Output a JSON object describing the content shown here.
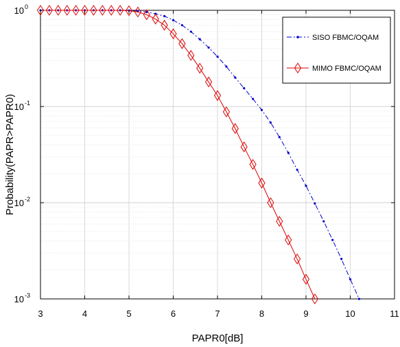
{
  "chart_data": {
    "type": "line",
    "xlabel": "PAPR0[dB]",
    "ylabel": "Probability(PAPR>PAPR0)",
    "x_scale": "linear",
    "y_scale": "log",
    "xlim": [
      3,
      11
    ],
    "ylim": [
      0.001,
      1
    ],
    "grid": true,
    "legend_position": "top-right",
    "x_ticks": [
      3,
      4,
      5,
      6,
      7,
      8,
      9,
      10,
      11
    ],
    "x_tick_labels": [
      "3",
      "4",
      "5",
      "6",
      "7",
      "8",
      "9",
      "10",
      "11"
    ],
    "y_ticks": [
      0.001,
      0.01,
      0.1,
      1
    ],
    "y_tick_labels": [
      {
        "base": "10",
        "exp": "-3"
      },
      {
        "base": "10",
        "exp": "-2"
      },
      {
        "base": "10",
        "exp": "-1"
      },
      {
        "base": "10",
        "exp": "0"
      }
    ],
    "series": [
      {
        "name": "SISO FBMC/OQAM",
        "color": "#0000cc",
        "line_style": "dash-dot",
        "marker": "point",
        "x": [
          3.0,
          3.2,
          3.4,
          3.6,
          3.8,
          4.0,
          4.2,
          4.4,
          4.6,
          4.8,
          5.0,
          5.2,
          5.4,
          5.6,
          5.8,
          6.0,
          6.2,
          6.4,
          6.6,
          6.8,
          7.0,
          7.2,
          7.4,
          7.6,
          7.8,
          8.0,
          8.2,
          8.4,
          8.6,
          8.8,
          9.0,
          9.2,
          9.4,
          9.6,
          9.8,
          10.0,
          10.2
        ],
        "y": [
          1.0,
          1.0,
          1.0,
          1.0,
          1.0,
          1.0,
          1.0,
          1.0,
          1.0,
          1.0,
          0.995,
          0.985,
          0.96,
          0.92,
          0.87,
          0.79,
          0.7,
          0.6,
          0.5,
          0.41,
          0.33,
          0.26,
          0.2,
          0.155,
          0.12,
          0.092,
          0.068,
          0.048,
          0.033,
          0.022,
          0.015,
          0.0098,
          0.0064,
          0.0041,
          0.0026,
          0.0016,
          0.001
        ]
      },
      {
        "name": "MIMO FBMC/OQAM",
        "color": "#dd0000",
        "line_style": "solid",
        "marker": "diamond",
        "x": [
          3.0,
          3.2,
          3.4,
          3.6,
          3.8,
          4.0,
          4.2,
          4.4,
          4.6,
          4.8,
          5.0,
          5.2,
          5.4,
          5.6,
          5.8,
          6.0,
          6.2,
          6.4,
          6.6,
          6.8,
          7.0,
          7.2,
          7.4,
          7.6,
          7.8,
          8.0,
          8.2,
          8.4,
          8.6,
          8.8,
          9.0,
          9.2
        ],
        "y": [
          1.0,
          1.0,
          1.0,
          1.0,
          1.0,
          1.0,
          1.0,
          1.0,
          1.0,
          1.0,
          0.99,
          0.96,
          0.9,
          0.81,
          0.7,
          0.57,
          0.45,
          0.34,
          0.25,
          0.18,
          0.13,
          0.088,
          0.059,
          0.038,
          0.025,
          0.016,
          0.01,
          0.0064,
          0.0041,
          0.0026,
          0.0016,
          0.001
        ]
      }
    ]
  }
}
